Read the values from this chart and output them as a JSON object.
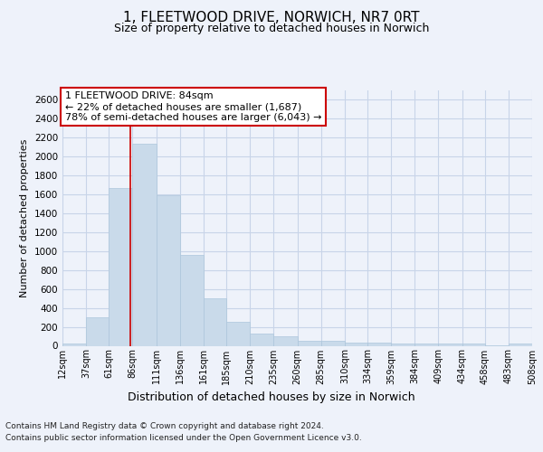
{
  "title_line1": "1, FLEETWOOD DRIVE, NORWICH, NR7 0RT",
  "title_line2": "Size of property relative to detached houses in Norwich",
  "xlabel": "Distribution of detached houses by size in Norwich",
  "ylabel": "Number of detached properties",
  "bar_color": "#c9daea",
  "bar_edgecolor": "#adc6dc",
  "grid_color": "#c8d4e8",
  "annotation_box_text": "1 FLEETWOOD DRIVE: 84sqm\n← 22% of detached houses are smaller (1,687)\n78% of semi-detached houses are larger (6,043) →",
  "vline_color": "#cc0000",
  "vline_x": 84,
  "footer_line1": "Contains HM Land Registry data © Crown copyright and database right 2024.",
  "footer_line2": "Contains public sector information licensed under the Open Government Licence v3.0.",
  "bin_edges": [
    12,
    37,
    61,
    86,
    111,
    136,
    161,
    185,
    210,
    235,
    260,
    285,
    310,
    334,
    359,
    384,
    409,
    434,
    458,
    483,
    508
  ],
  "bin_labels": [
    "12sqm",
    "37sqm",
    "61sqm",
    "86sqm",
    "111sqm",
    "136sqm",
    "161sqm",
    "185sqm",
    "210sqm",
    "235sqm",
    "260sqm",
    "285sqm",
    "310sqm",
    "334sqm",
    "359sqm",
    "384sqm",
    "409sqm",
    "434sqm",
    "458sqm",
    "483sqm",
    "508sqm"
  ],
  "bar_heights": [
    25,
    300,
    1670,
    2140,
    1590,
    960,
    500,
    250,
    125,
    100,
    50,
    50,
    35,
    35,
    20,
    25,
    20,
    20,
    5,
    25
  ],
  "ylim": [
    0,
    2700
  ],
  "yticks": [
    0,
    200,
    400,
    600,
    800,
    1000,
    1200,
    1400,
    1600,
    1800,
    2000,
    2200,
    2400,
    2600
  ],
  "background_color": "#eef2fa",
  "plot_bg_color": "#eef2fa",
  "title_fontsize": 11,
  "subtitle_fontsize": 9,
  "ylabel_fontsize": 8,
  "xlabel_fontsize": 9,
  "tick_fontsize": 7,
  "footer_fontsize": 6.5,
  "annot_fontsize": 8
}
